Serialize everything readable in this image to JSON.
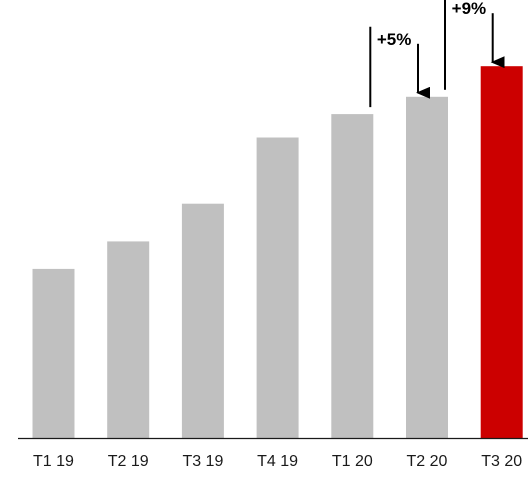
{
  "chart_data": {
    "type": "bar",
    "categories": [
      "T1 19",
      "T2 19",
      "T3 19",
      "T4 19",
      "T1 20",
      "T2 20",
      "T3 20"
    ],
    "values": [
      166,
      193,
      230,
      295,
      318,
      335,
      365
    ],
    "highlight_index": 6,
    "ylim": [
      0,
      430
    ],
    "grid": false,
    "legend": "none",
    "colors": {
      "bar": "#c0c0c0",
      "highlight": "#cc0000",
      "axis": "#1a1a1a",
      "annotation": "#000000"
    },
    "annotations": [
      {
        "text": "+5%",
        "from_index": 4,
        "to_index": 5
      },
      {
        "text": "+9%",
        "from_index": 5,
        "to_index": 6
      }
    ]
  }
}
